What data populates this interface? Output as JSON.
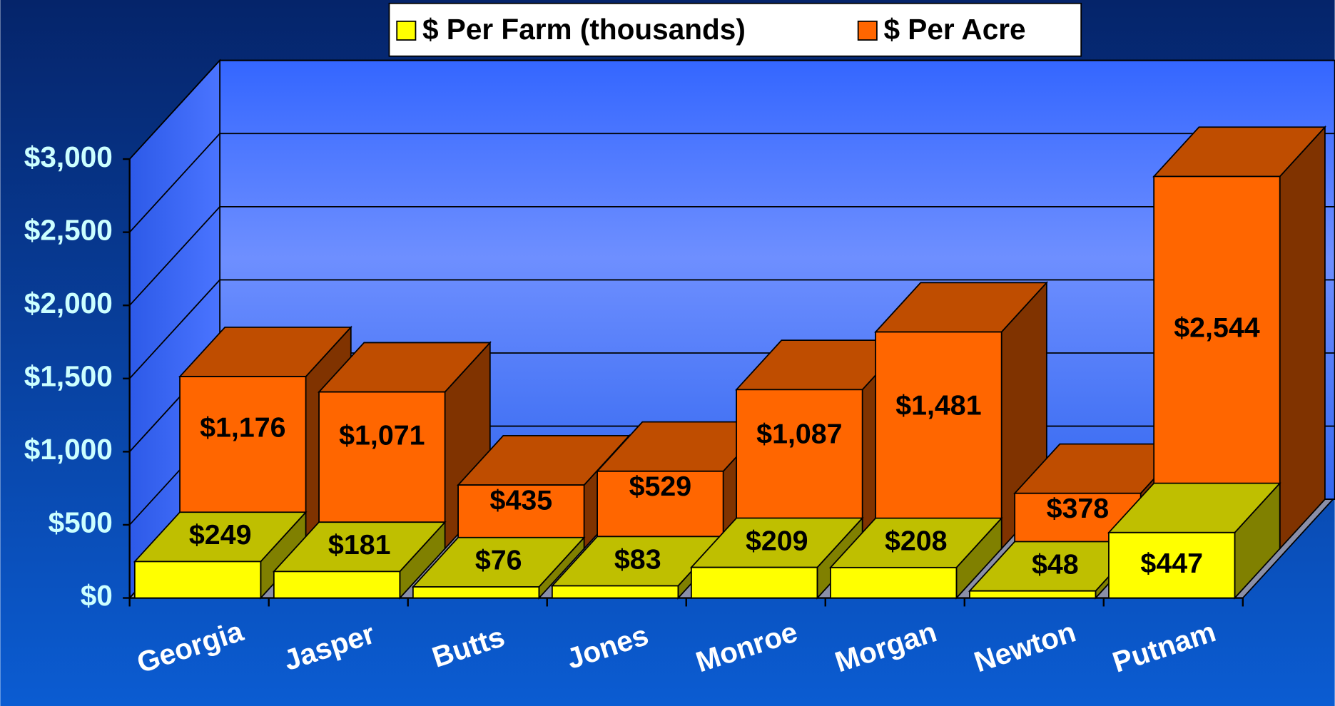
{
  "chart_data": {
    "type": "bar3d",
    "categories": [
      "Georgia",
      "Jasper",
      "Butts",
      "Jones",
      "Monroe",
      "Morgan",
      "Newton",
      "Putnam"
    ],
    "series": [
      {
        "name": "$ Per Farm (thousands)",
        "color": "#ffff00",
        "values": [
          249,
          181,
          76,
          83,
          209,
          208,
          48,
          447
        ],
        "value_labels": [
          "$249",
          "$181",
          "$76",
          "$83",
          "$209",
          "$208",
          "$48",
          "$447"
        ]
      },
      {
        "name": "$ Per Acre",
        "color": "#ff6600",
        "values": [
          1176,
          1071,
          435,
          529,
          1087,
          1481,
          378,
          2544
        ],
        "value_labels": [
          "$1,176",
          "$1,071",
          "$435",
          "$529",
          "$1,087",
          "$1,481",
          "$378",
          "$2,544"
        ]
      }
    ],
    "ylim": [
      0,
      3000
    ],
    "yticks": [
      {
        "value": 0,
        "label": "$0"
      },
      {
        "value": 500,
        "label": "$500"
      },
      {
        "value": 1000,
        "label": "$1,000"
      },
      {
        "value": 1500,
        "label": "$1,500"
      },
      {
        "value": 2000,
        "label": "$2,000"
      },
      {
        "value": 2500,
        "label": "$2,500"
      },
      {
        "value": 3000,
        "label": "$3,000"
      }
    ],
    "grid": true,
    "legend": "top"
  }
}
